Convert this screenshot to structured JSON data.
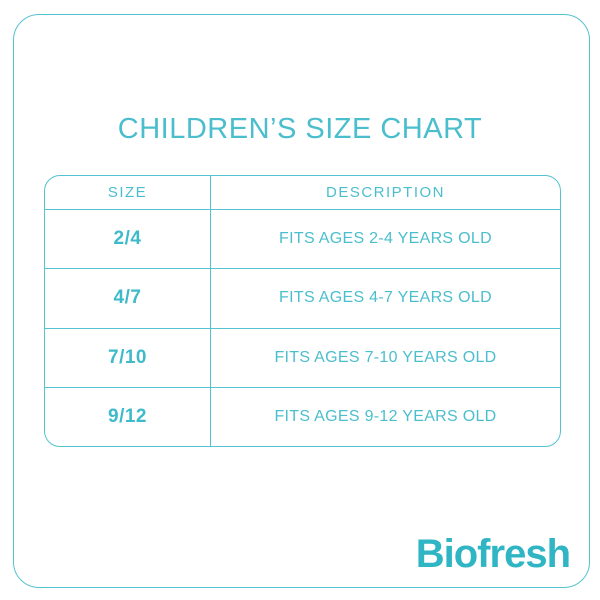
{
  "colors": {
    "background": "#ffffff",
    "line": "#55c2d0",
    "accent": "#4bbecd",
    "size_text": "#3ebaca",
    "logo": "#30b5c5"
  },
  "chart_data": {
    "type": "table",
    "title": "CHILDREN’S SIZE CHART",
    "columns": [
      "SIZE",
      "DESCRIPTION"
    ],
    "rows": [
      [
        "2/4",
        "FITS AGES 2-4 YEARS OLD"
      ],
      [
        "4/7",
        "FITS AGES 4-7 YEARS OLD"
      ],
      [
        "7/10",
        "FITS AGES 7-10 YEARS OLD"
      ],
      [
        "9/12",
        "FITS AGES 9-12 YEARS OLD"
      ]
    ]
  },
  "brand": {
    "logo_text": "Biofresh"
  }
}
